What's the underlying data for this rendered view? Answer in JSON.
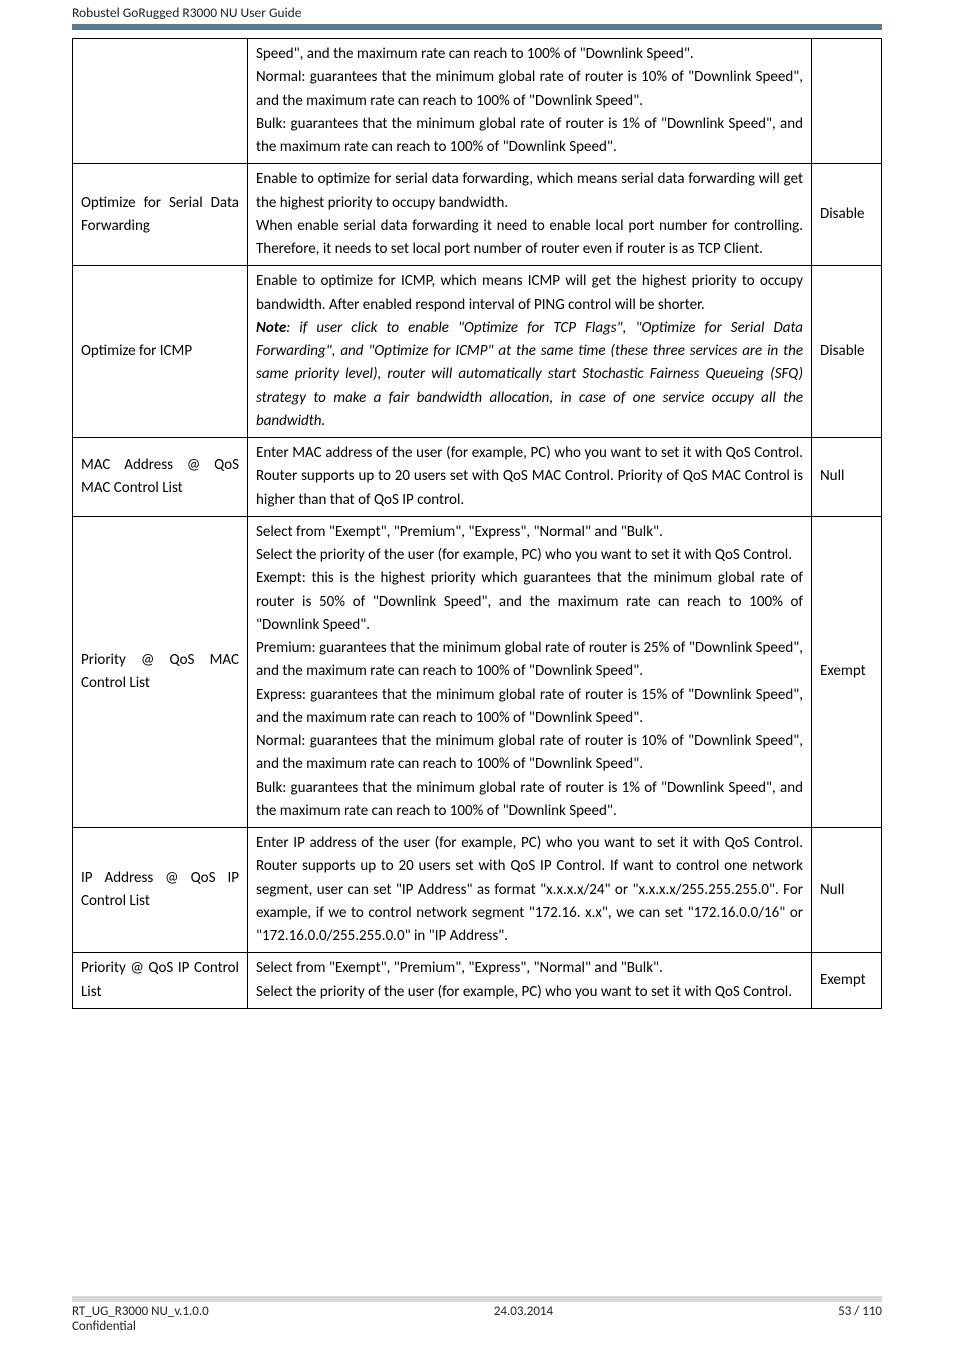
{
  "header": {
    "title": "Robustel GoRugged R3000 NU User Guide"
  },
  "rows": [
    {
      "c1": "",
      "c2_html": "Speed\", and the maximum rate can reach to 100% of \"Downlink Speed\".<br>Normal: guarantees that the minimum global rate of router is 10% of \"Downlink Speed\", and the maximum rate can reach to 100% of \"Downlink Speed\".<br>Bulk: guarantees that the minimum global rate of router is 1% of \"Downlink Speed\", and the maximum rate can reach to 100% of \"Downlink Speed\".",
      "c3": "",
      "top_open": true
    },
    {
      "c1": "Optimize for Serial Data Forwarding",
      "c2_html": "Enable to optimize for serial data forwarding, which means serial data forwarding will get the highest priority to occupy bandwidth.<br>When enable serial data forwarding it need to enable local port number for controlling. Therefore, it needs to set local port number of router even if router is as TCP Client.",
      "c3": "Disable"
    },
    {
      "c1": "Optimize for ICMP",
      "c2_html": "Enable to optimize for ICMP, which means ICMP will get the highest priority to occupy bandwidth. After enabled respond interval of PING control will be shorter.<br><span class=\"italic\"><b>Note</b>: if user click to enable \"Optimize for TCP Flags\", \"Optimize for Serial Data Forwarding\", and \"Optimize for ICMP\" at the same time (these three services are in the same priority level), router will automatically start Stochastic Fairness Queueing (SFQ) strategy to make a fair bandwidth allocation, in case of one service occupy all the bandwidth.</span>",
      "c3": "Disable"
    },
    {
      "c1": "MAC Address @ QoS MAC Control List",
      "c2_html": "Enter MAC address of the user (for example, PC) who you want to set it with QoS Control. Router supports up to 20 users set with QoS MAC Control. Priority of QoS MAC Control is higher than that of QoS IP control.",
      "c3": "Null"
    },
    {
      "c1": "Priority @ QoS MAC Control List",
      "c2_html": "Select from \"Exempt\", \"Premium\", \"Express\", \"Normal\" and \"Bulk\".<br>Select the priority of the user (for example, PC) who you want to set it with QoS Control.<br>Exempt: this is the highest priority which guarantees that the minimum global rate of router is 50% of \"Downlink Speed\", and the maximum rate can reach to 100% of \"Downlink Speed\".<br>Premium: guarantees that the minimum global rate of router is 25% of \"Downlink Speed\", and the maximum rate can reach to 100% of \"Downlink Speed\".<br>Express: guarantees that the minimum global rate of router is 15% of \"Downlink Speed\", and the maximum rate can reach to 100% of \"Downlink Speed\".<br>Normal: guarantees that the minimum global rate of router is 10% of \"Downlink Speed\", and the maximum rate can reach to 100% of \"Downlink Speed\".<br>Bulk: guarantees that the minimum global rate of router is 1% of \"Downlink Speed\", and the maximum rate can reach to 100% of \"Downlink Speed\".",
      "c3": "Exempt"
    },
    {
      "c1": "IP Address @ QoS IP Control List",
      "c2_html": "Enter IP address of the user (for example, PC) who you want to set it with QoS Control. Router supports up to 20 users set with QoS IP Control. If want to control one network segment, user can set \"IP Address\" as format \"x.x.x.x/24\" or \"x.x.x.x/255.255.255.0\". For example, if we to control network segment \"172.16. x.x\", we can set \"172.16.0.0/16\" or \"172.16.0.0/255.255.0.0\" in \"IP Address\".",
      "c3": "Null"
    },
    {
      "c1": "Priority @ QoS IP Control List",
      "c2_html": "Select from \"Exempt\", \"Premium\", \"Express\", \"Normal\" and \"Bulk\".<br>Select the priority of the user (for example, PC) who you want to set it with QoS Control.",
      "c3": "Exempt"
    }
  ],
  "footer": {
    "left_line1": "RT_UG_R3000 NU_v.1.0.0",
    "left_line2": "Confidential",
    "center": "24.03.2014",
    "right": "53 / 110"
  }
}
